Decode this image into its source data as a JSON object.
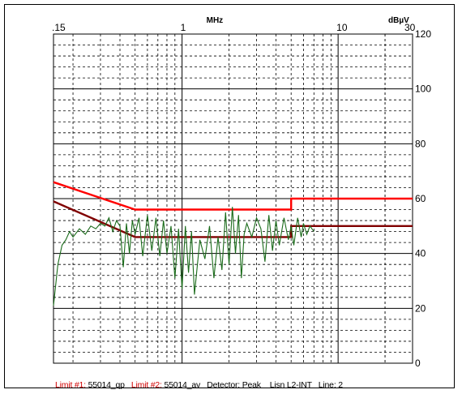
{
  "chart_data": {
    "type": "line",
    "title": "",
    "xlabel": "MHz",
    "ylabel": "dBµV",
    "x_scale": "log",
    "xlim": [
      0.15,
      30
    ],
    "ylim": [
      0,
      120
    ],
    "x_tick_labels": [
      ".15",
      "1",
      "10",
      "30"
    ],
    "x_ticks": [
      0.15,
      1,
      10,
      30
    ],
    "y_ticks": [
      0,
      20,
      40,
      60,
      80,
      100,
      120
    ],
    "grid": true,
    "colors": {
      "limit_qp": "#ff0000",
      "limit_av": "#800000",
      "trace": "#1a6b1a",
      "grid": "#000000"
    },
    "series": [
      {
        "name": "55014_qp",
        "color": "#ff0000",
        "x": [
          0.15,
          0.5,
          0.5,
          5,
          5,
          30
        ],
        "y": [
          66,
          56,
          56,
          56,
          60,
          60
        ]
      },
      {
        "name": "55014_av",
        "color": "#800000",
        "x": [
          0.15,
          0.5,
          0.5,
          5,
          5,
          30
        ],
        "y": [
          59,
          46,
          46,
          46,
          50,
          50
        ]
      },
      {
        "name": "Peak",
        "color": "#1a6b1a",
        "x": [
          0.15,
          0.16,
          0.17,
          0.18,
          0.19,
          0.2,
          0.22,
          0.24,
          0.26,
          0.28,
          0.3,
          0.32,
          0.34,
          0.36,
          0.38,
          0.4,
          0.42,
          0.44,
          0.46,
          0.48,
          0.5,
          0.53,
          0.56,
          0.6,
          0.64,
          0.68,
          0.72,
          0.76,
          0.8,
          0.85,
          0.9,
          0.95,
          1.0,
          1.05,
          1.1,
          1.15,
          1.2,
          1.3,
          1.4,
          1.5,
          1.6,
          1.7,
          1.8,
          1.9,
          2.0,
          2.1,
          2.2,
          2.3,
          2.4,
          2.5,
          2.6,
          2.8,
          3.0,
          3.2,
          3.4,
          3.6,
          3.8,
          4.0,
          4.2,
          4.5,
          4.8,
          5.0,
          5.2,
          5.5,
          5.8,
          6.0,
          6.3,
          6.6,
          7.0
        ],
        "y": [
          21,
          36,
          43,
          45,
          48,
          46,
          49,
          47,
          50,
          49,
          51,
          50,
          53,
          48,
          52,
          50,
          35,
          51,
          40,
          52,
          47,
          53,
          39,
          54,
          41,
          53,
          39,
          52,
          40,
          50,
          31,
          49,
          27,
          50,
          33,
          48,
          25,
          45,
          38,
          50,
          31,
          46,
          34,
          55,
          36,
          57,
          40,
          54,
          31,
          47,
          51,
          46,
          53,
          49,
          37,
          54,
          41,
          52,
          43,
          53,
          45,
          50,
          43,
          53,
          46,
          51,
          47,
          50,
          48
        ]
      }
    ],
    "legend_placement": "bottom"
  },
  "footer": {
    "limit1_label": "Limit #1:",
    "limit1_value": "55014_qp",
    "limit2_label": "Limit #2:",
    "limit2_value": "55014_av",
    "detector": "Detector: Peak",
    "lisn": "Lisn L2-INT",
    "line": "Line: 2"
  }
}
